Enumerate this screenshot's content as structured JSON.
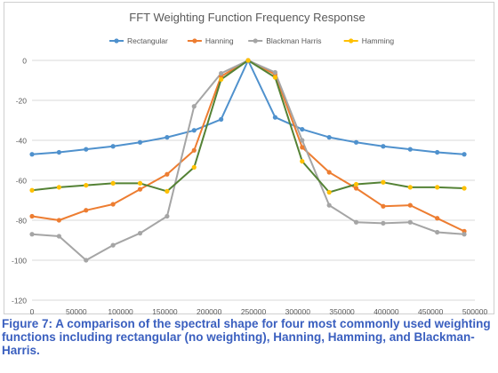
{
  "figure": {
    "caption": "Figure 7: A comparison of the spectral shape for four most commonly used weighting functions including rectangular (no weighting), Hanning, Hamming, and Blackman-Harris."
  },
  "chart_data": {
    "type": "line",
    "title": "FFT Weighting Function Frequency Response",
    "xlabel": "",
    "ylabel": "",
    "xlim": [
      0,
      500000
    ],
    "ylim": [
      -120,
      0
    ],
    "x_ticks": [
      0,
      50000,
      100000,
      150000,
      200000,
      250000,
      300000,
      350000,
      400000,
      450000,
      500000
    ],
    "y_ticks": [
      0,
      -20,
      -40,
      -60,
      -80,
      -100,
      -120
    ],
    "grid": "horizontal",
    "legend_position": "top",
    "x": [
      0,
      30500,
      61000,
      91500,
      122000,
      152500,
      183000,
      213500,
      244000,
      274500,
      305000,
      335500,
      366000,
      396500,
      427000,
      457500,
      488000
    ],
    "series": [
      {
        "name": "Rectangular",
        "color": "#4f91cd",
        "values": [
          -47,
          -46,
          -44.5,
          -43,
          -41,
          -38.5,
          -35,
          -29.5,
          0,
          -28.5,
          -34.5,
          -38.5,
          -41,
          -43,
          -44.5,
          -46,
          -47
        ]
      },
      {
        "name": "Hanning",
        "color": "#ed7d31",
        "values": [
          -78,
          -80,
          -75,
          -72,
          -64.5,
          -57,
          -45,
          -8,
          0,
          -7,
          -43.5,
          -56,
          -64,
          -73,
          -72.5,
          -79,
          -85.5
        ]
      },
      {
        "name": "Blackman Harris",
        "color": "#a5a5a5",
        "values": [
          -87,
          -88,
          -100,
          -92.5,
          -86.5,
          -78,
          -23,
          -6.5,
          0,
          -6,
          -40,
          -72.5,
          -81,
          -81.5,
          -81,
          -86,
          -87
        ]
      },
      {
        "name": "Hamming",
        "color": "#ffc000",
        "line_color": "#548235",
        "values": [
          -65,
          -63.5,
          -62.5,
          -61.5,
          -61.5,
          -65.5,
          -53.5,
          -9.5,
          0,
          -8.5,
          -50.5,
          -66,
          -62,
          -61,
          -63.5,
          -63.5,
          -64
        ]
      }
    ]
  }
}
